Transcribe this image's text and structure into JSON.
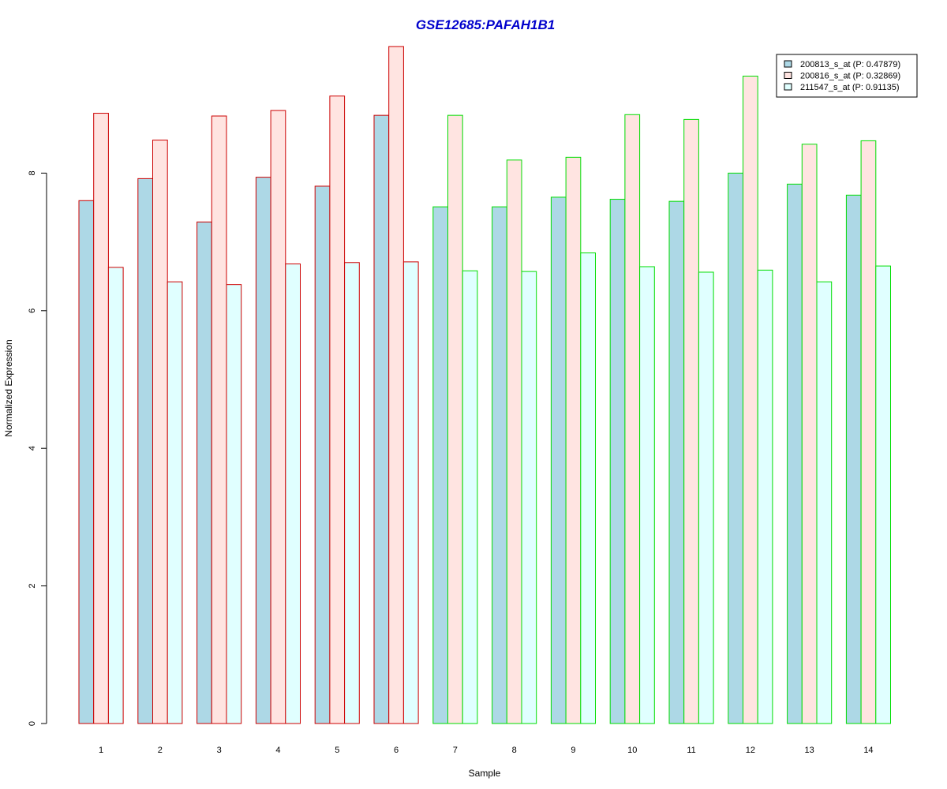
{
  "chart_data": {
    "type": "bar",
    "title": "GSE12685:PAFAH1B1",
    "xlabel": "Sample",
    "ylabel": "Normalized Expression",
    "ylim": [
      0,
      9.8
    ],
    "yticks": [
      0,
      2,
      4,
      6,
      8
    ],
    "grid": false,
    "legend_position": "top-right",
    "categories": [
      "1",
      "2",
      "3",
      "4",
      "5",
      "6",
      "7",
      "8",
      "9",
      "10",
      "11",
      "12",
      "13",
      "14"
    ],
    "series": [
      {
        "name": "200813_s_at (P: 0.47879)",
        "fill": "#add8e6",
        "values": [
          7.6,
          7.92,
          7.29,
          7.94,
          7.81,
          8.84,
          7.51,
          7.51,
          7.65,
          7.62,
          7.59,
          8.0,
          7.84,
          7.68
        ]
      },
      {
        "name": "200816_s_at (P: 0.32869)",
        "fill": "#ffe4e1",
        "values": [
          8.87,
          8.48,
          8.83,
          8.91,
          9.12,
          9.84,
          8.84,
          8.19,
          8.23,
          8.85,
          8.78,
          9.41,
          8.42,
          8.47
        ]
      },
      {
        "name": "211547_s_at (P: 0.91135)",
        "fill": "#e0ffff",
        "values": [
          6.63,
          6.42,
          6.38,
          6.68,
          6.7,
          6.71,
          6.58,
          6.57,
          6.84,
          6.64,
          6.56,
          6.59,
          6.42,
          6.65
        ]
      }
    ],
    "group_border_colors": [
      "#cc0000",
      "#cc0000",
      "#cc0000",
      "#cc0000",
      "#cc0000",
      "#cc0000",
      "#00dd00",
      "#00dd00",
      "#00dd00",
      "#00dd00",
      "#00dd00",
      "#00dd00",
      "#00dd00",
      "#00dd00"
    ],
    "colors": {
      "title": "#0000cc",
      "axis": "#000000",
      "text": "#000000"
    }
  }
}
